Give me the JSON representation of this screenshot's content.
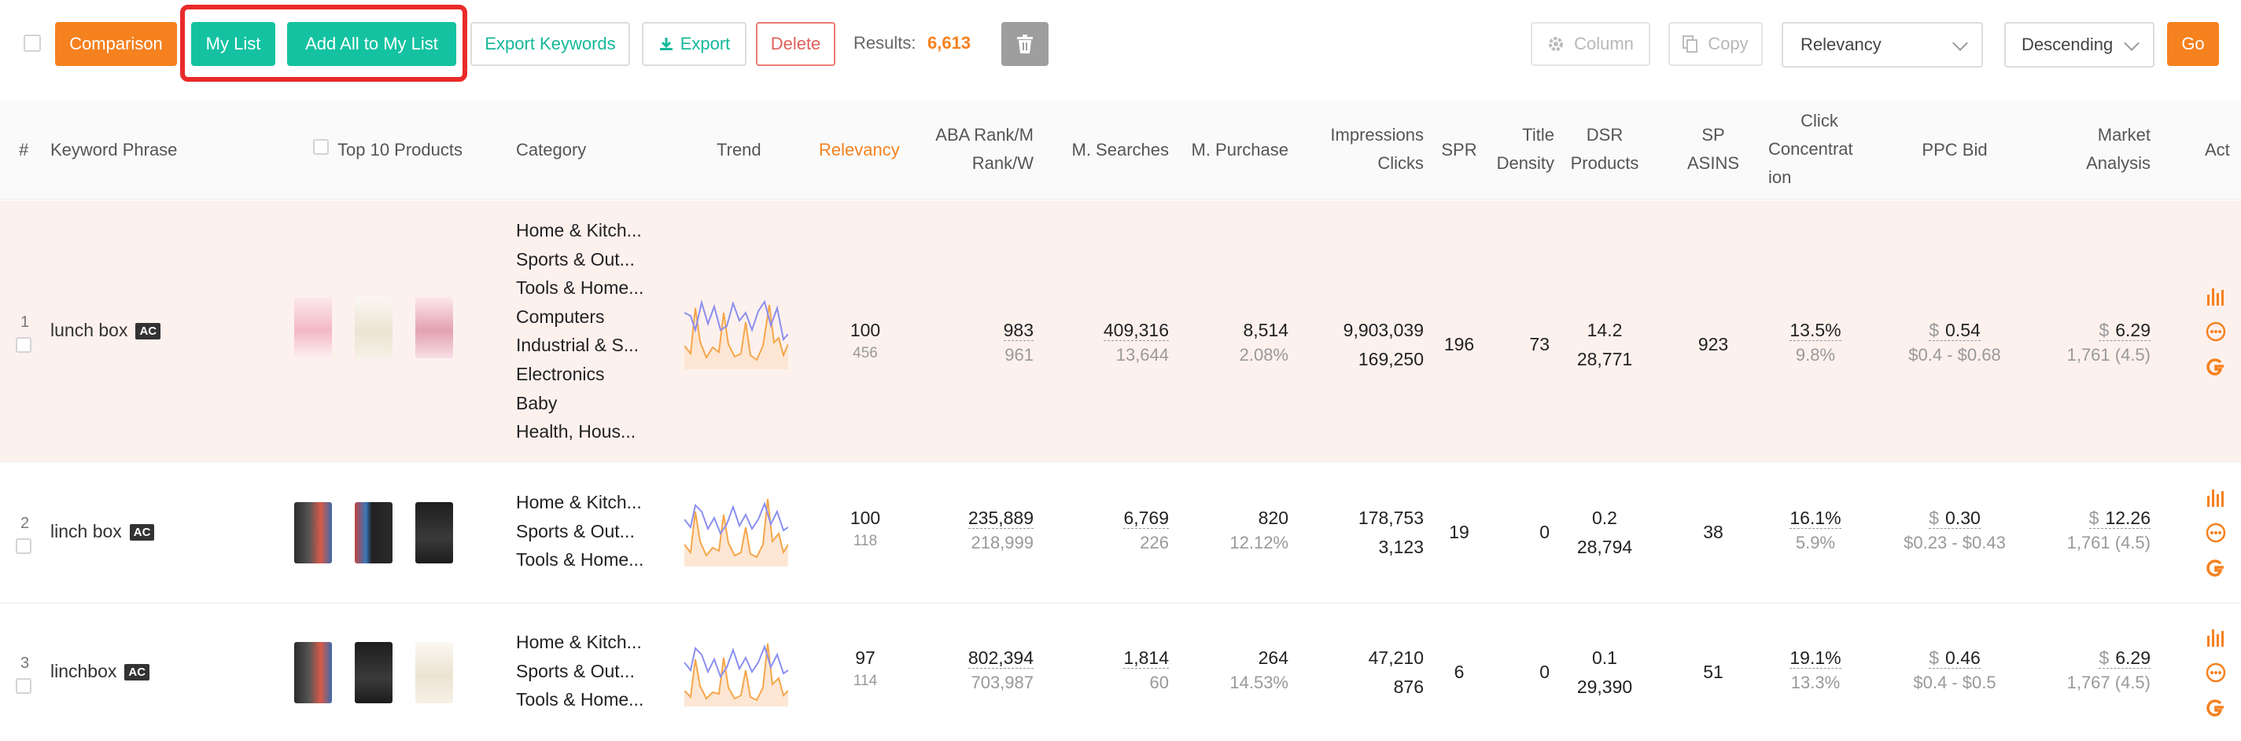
{
  "toolbar": {
    "comparison": "Comparison",
    "my_list": "My List",
    "add_all": "Add All to My List",
    "export_keywords": "Export Keywords",
    "export": "Export",
    "delete": "Delete",
    "results_label": "Results:",
    "results_value": "6,613",
    "column": "Column",
    "copy": "Copy",
    "sort_by": "Relevancy",
    "sort_order": "Descending",
    "go": "Go"
  },
  "columns": {
    "index": "#",
    "keyword": "Keyword Phrase",
    "top10": "Top 10 Products",
    "category": "Category",
    "trend": "Trend",
    "relevancy": "Relevancy",
    "aba_1": "ABA Rank/M",
    "aba_2": "Rank/W",
    "searches": "M. Searches",
    "purchase": "M. Purchase",
    "impr_1": "Impressions",
    "impr_2": "Clicks",
    "spr": "SPR",
    "title_1": "Title",
    "title_2": "Density",
    "dsr_1": "DSR",
    "dsr_2": "Products",
    "sp_1": "SP",
    "sp_2": "ASINS",
    "click_1": "Click",
    "click_2": "Concentrat",
    "click_3": "ion",
    "ppc": "PPC Bid",
    "market_1": "Market",
    "market_2": "Analysis",
    "act": "Act"
  },
  "rows": [
    {
      "index": "1",
      "keyword": "lunch box",
      "badge": "AC",
      "categories": [
        "Home & Kitch...",
        "Sports & Out...",
        "Tools & Home...",
        "Computers",
        "Industrial & S...",
        "Electronics",
        "Baby",
        "Health, Hous..."
      ],
      "relevancy": "100",
      "relevancy_sub": "456",
      "aba_m": "983",
      "aba_w": "961",
      "searches": "409,316",
      "searches_sub": "13,644",
      "purchase": "8,514",
      "purchase_pct": "2.08%",
      "impressions": "9,903,039",
      "clicks": "169,250",
      "spr": "196",
      "title_density": "73",
      "dsr": "14.2",
      "products": "28,771",
      "sp_asins": "923",
      "click_conc": "13.5%",
      "click_conc_sub": "9.8%",
      "ppc_currency": "$",
      "ppc": "0.54",
      "ppc_range": "$0.4 - $0.68",
      "market_currency": "$",
      "market": "6.29",
      "market_sub": "1,761 (4.5)"
    },
    {
      "index": "2",
      "keyword": "linch box",
      "badge": "AC",
      "categories": [
        "Home & Kitch...",
        "Sports & Out...",
        "Tools & Home..."
      ],
      "relevancy": "100",
      "relevancy_sub": "118",
      "aba_m": "235,889",
      "aba_w": "218,999",
      "searches": "6,769",
      "searches_sub": "226",
      "purchase": "820",
      "purchase_pct": "12.12%",
      "impressions": "178,753",
      "clicks": "3,123",
      "spr": "19",
      "title_density": "0",
      "dsr": "0.2",
      "products": "28,794",
      "sp_asins": "38",
      "click_conc": "16.1%",
      "click_conc_sub": "5.9%",
      "ppc_currency": "$",
      "ppc": "0.30",
      "ppc_range": "$0.23 - $0.43",
      "market_currency": "$",
      "market": "12.26",
      "market_sub": "1,761 (4.5)"
    },
    {
      "index": "3",
      "keyword": "linchbox",
      "badge": "AC",
      "categories": [
        "Home & Kitch...",
        "Sports & Out...",
        "Tools & Home..."
      ],
      "relevancy": "97",
      "relevancy_sub": "114",
      "aba_m": "802,394",
      "aba_w": "703,987",
      "searches": "1,814",
      "searches_sub": "60",
      "purchase": "264",
      "purchase_pct": "14.53%",
      "impressions": "47,210",
      "clicks": "876",
      "spr": "6",
      "title_density": "0",
      "dsr": "0.1",
      "products": "29,390",
      "sp_asins": "51",
      "click_conc": "19.1%",
      "click_conc_sub": "13.3%",
      "ppc_currency": "$",
      "ppc": "0.46",
      "ppc_range": "$0.4 - $0.5",
      "market_currency": "$",
      "market": "6.29",
      "market_sub": "1,767 (4.5)"
    }
  ],
  "colors": {
    "orange": "#f5811f",
    "teal": "#14c2a1",
    "highlight_red": "#ea2a2a",
    "row_highlight": "#fdf1ee",
    "trend_blue": "#8b8ff0",
    "trend_orange": "#f5a64a"
  },
  "icons": [
    "trash-icon",
    "gear-icon",
    "copy-icon",
    "chevron-down-icon",
    "download-icon",
    "bar-chart-icon",
    "more-icon",
    "google-icon"
  ]
}
